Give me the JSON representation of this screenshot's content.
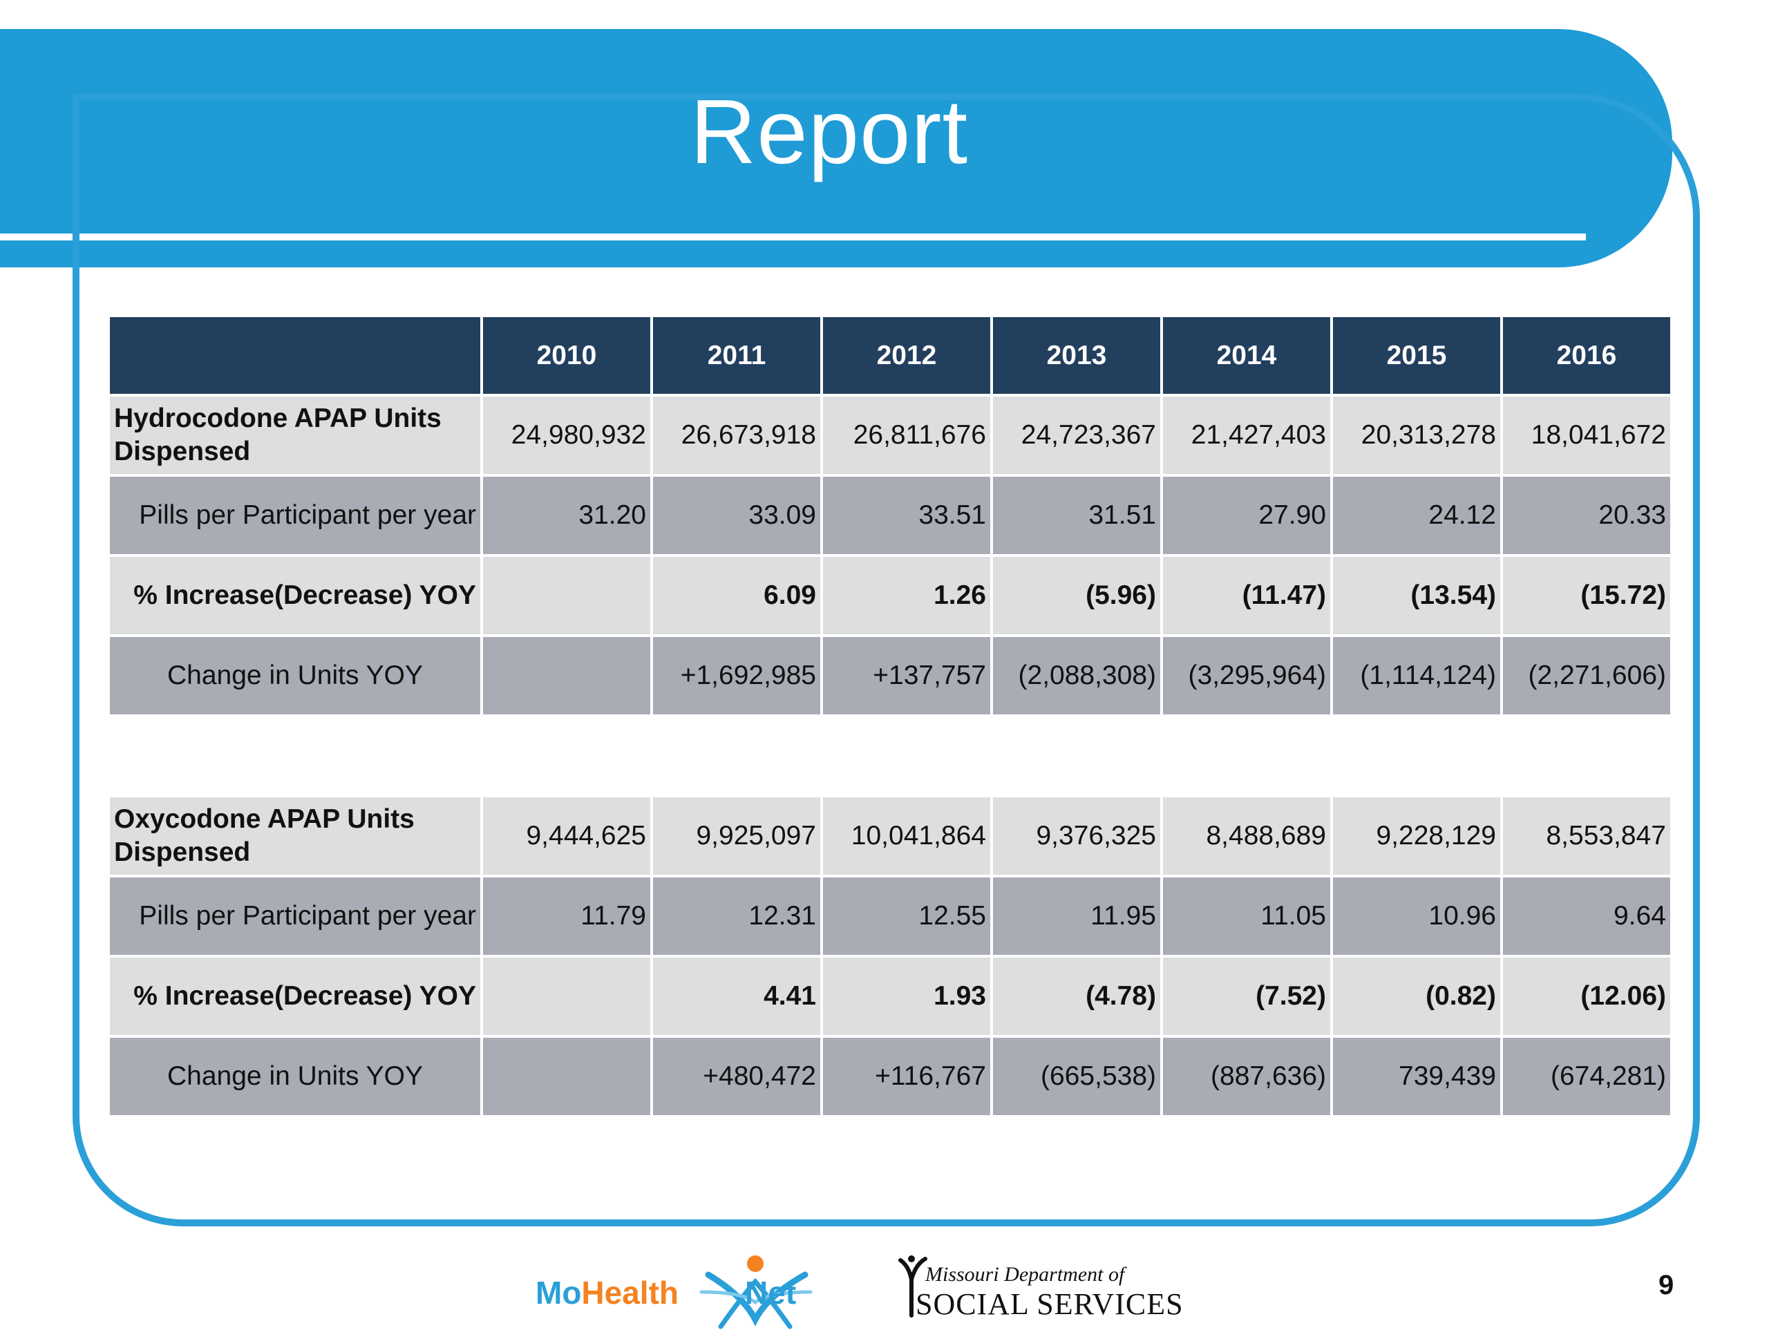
{
  "slide": {
    "title": "Report",
    "page_number": "9"
  },
  "table_header": [
    "",
    "2010",
    "2011",
    "2012",
    "2013",
    "2014",
    "2015",
    "2016"
  ],
  "hydrocodone": {
    "rows": [
      {
        "label": "Hydrocodone APAP Units Dispensed",
        "values": [
          "24,980,932",
          "26,673,918",
          "26,811,676",
          "24,723,367",
          "21,427,403",
          "20,313,278",
          "18,041,672"
        ]
      },
      {
        "label": "Pills per Participant per year",
        "values": [
          "31.20",
          "33.09",
          "33.51",
          "31.51",
          "27.90",
          "24.12",
          "20.33"
        ]
      },
      {
        "label": "% Increase(Decrease) YOY",
        "values": [
          "",
          "6.09",
          "1.26",
          "(5.96)",
          "(11.47)",
          "(13.54)",
          "(15.72)"
        ]
      },
      {
        "label": "Change in Units YOY",
        "values": [
          "",
          "+1,692,985",
          "+137,757",
          "(2,088,308)",
          "(3,295,964)",
          "(1,114,124)",
          "(2,271,606)"
        ]
      }
    ]
  },
  "oxycodone": {
    "rows": [
      {
        "label": "Oxycodone APAP Units Dispensed",
        "values": [
          "9,444,625",
          "9,925,097",
          "10,041,864",
          "9,376,325",
          "8,488,689",
          "9,228,129",
          "8,553,847"
        ]
      },
      {
        "label": "Pills per Participant per year",
        "values": [
          "11.79",
          "12.31",
          "12.55",
          "11.95",
          "11.05",
          "10.96",
          "9.64"
        ]
      },
      {
        "label": "% Increase(Decrease) YOY",
        "values": [
          "",
          "4.41",
          "1.93",
          "(4.78)",
          "(7.52)",
          "(0.82)",
          "(12.06)"
        ]
      },
      {
        "label": "Change in Units YOY",
        "values": [
          "",
          "+480,472",
          "+116,767",
          "(665,538)",
          "(887,636)",
          "739,439",
          "(674,281)"
        ]
      }
    ]
  },
  "footer": {
    "mohealthnet_logo": "MoHealthNet",
    "dss_logo_line1": "Missouri Department of",
    "dss_logo_line2": "SOCIAL SERVICES"
  },
  "colors": {
    "banner": "#1f9bd6",
    "frame": "#2a9fd8",
    "header_bg": "#233f5e",
    "row_light": "#dcdedf",
    "row_dark": "#a9abb5"
  }
}
